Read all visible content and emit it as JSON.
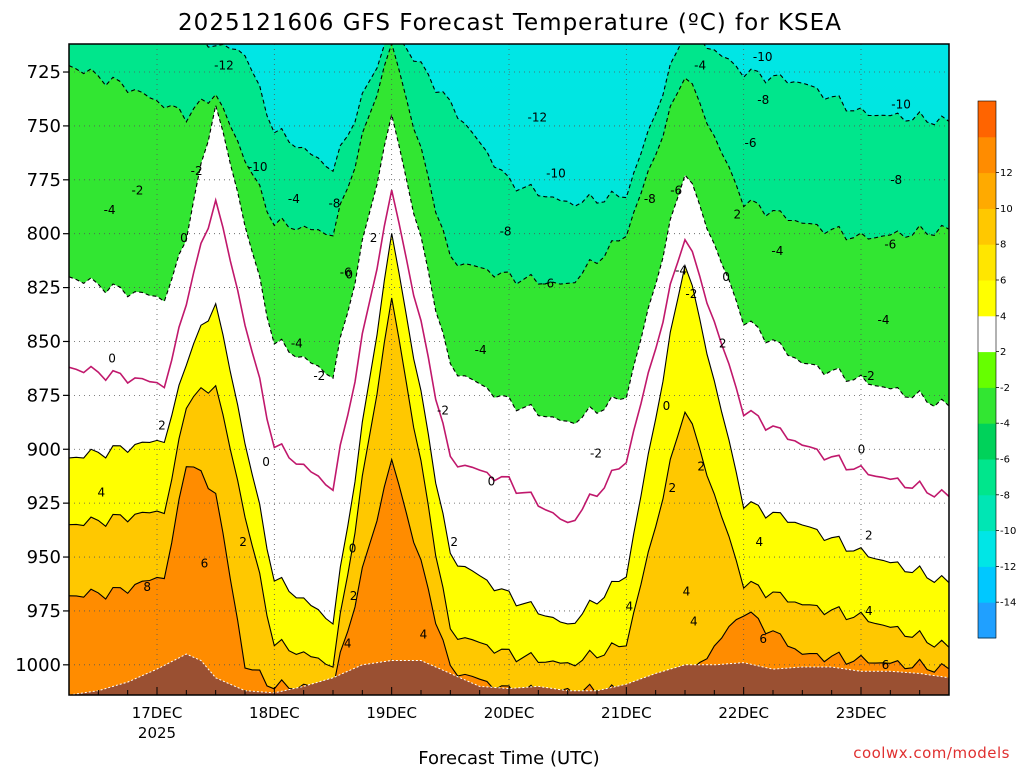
{
  "chart_data": {
    "type": "contour-crosssection",
    "title": "2025121606 GFS Forecast Temperature (ºC) for KSEA",
    "xlabel": "Forecast Time (UTC)",
    "credit": "coolwx.com/models",
    "pressure_ticks": [
      "725",
      "750",
      "775",
      "800",
      "825",
      "850",
      "875",
      "900",
      "925",
      "950",
      "975",
      "1000"
    ],
    "pressure_values": [
      725,
      750,
      775,
      800,
      825,
      850,
      875,
      900,
      925,
      950,
      975,
      1000
    ],
    "y_range_hPa": [
      712,
      1014
    ],
    "time_ticks": [
      "17DEC",
      "18DEC",
      "19DEC",
      "20DEC",
      "21DEC",
      "22DEC",
      "23DEC"
    ],
    "time_tick_hours": [
      18,
      42,
      66,
      90,
      114,
      138,
      162
    ],
    "year_label": "2025",
    "x_range_hours": [
      0,
      180
    ],
    "colorbar": {
      "levels": [
        -16,
        -14,
        -12,
        -10,
        -8,
        -6,
        -4,
        -2,
        2,
        4,
        6,
        8,
        10,
        12,
        14
      ],
      "labels": [
        "-14",
        "-12",
        "-10",
        "-8",
        "-6",
        "-4",
        "-2",
        "2",
        "4",
        "6",
        "8",
        "10",
        "12"
      ],
      "colors": [
        "#20a0ff",
        "#00c8ff",
        "#00e6e6",
        "#00e6b4",
        "#00e68c",
        "#00d25a",
        "#32e632",
        "#66ff00",
        "#ffffff",
        "#ffff00",
        "#ffe600",
        "#ffc800",
        "#ffaa00",
        "#ff8c00",
        "#ff6400"
      ]
    },
    "series": [
      {
        "name": "-10 isotherm (hPa)",
        "x": [
          0,
          18,
          36,
          42,
          54,
          66,
          78,
          90,
          102,
          114,
          126,
          138,
          150,
          162,
          180
        ],
        "values": [
          705,
          705,
          716,
          752,
          770,
          705,
          740,
          776,
          786,
          782,
          705,
          725,
          730,
          744,
          748
        ]
      },
      {
        "name": "-6 isotherm (hPa)",
        "x": [
          0,
          12,
          24,
          30,
          42,
          54,
          66,
          78,
          90,
          102,
          114,
          126,
          138,
          150,
          162,
          180
        ],
        "values": [
          722,
          732,
          745,
          735,
          795,
          800,
          712,
          812,
          820,
          824,
          800,
          725,
          785,
          795,
          802,
          798
        ]
      },
      {
        "name": "-2 isotherm (hPa)",
        "x": [
          0,
          10,
          20,
          24,
          30,
          42,
          54,
          66,
          78,
          90,
          102,
          114,
          126,
          138,
          150,
          162,
          180
        ],
        "values": [
          820,
          826,
          830,
          800,
          740,
          850,
          866,
          745,
          862,
          878,
          888,
          875,
          770,
          840,
          860,
          868,
          880
        ]
      },
      {
        "name": "0 isotherm (hPa)",
        "x": [
          0,
          10,
          20,
          24,
          30,
          42,
          54,
          66,
          78,
          90,
          102,
          114,
          126,
          138,
          150,
          162,
          180
        ],
        "values": [
          862,
          866,
          870,
          830,
          784,
          898,
          918,
          780,
          905,
          915,
          935,
          905,
          800,
          882,
          898,
          910,
          922
        ]
      },
      {
        "name": "2 isotherm (hPa)",
        "x": [
          0,
          10,
          20,
          24,
          30,
          42,
          54,
          66,
          78,
          90,
          102,
          114,
          126,
          138,
          150,
          162,
          180
        ],
        "values": [
          904,
          900,
          895,
          858,
          832,
          960,
          980,
          800,
          950,
          968,
          982,
          958,
          812,
          925,
          935,
          948,
          962
        ]
      },
      {
        "name": "4 isotherm (hPa)",
        "x": [
          0,
          10,
          20,
          24,
          30,
          42,
          54,
          66,
          78,
          90,
          102,
          114,
          126,
          138,
          150,
          162,
          180
        ],
        "values": [
          935,
          932,
          928,
          878,
          870,
          990,
          1000,
          830,
          985,
          995,
          1000,
          990,
          880,
          962,
          972,
          978,
          992
        ]
      },
      {
        "name": "6 isotherm (hPa)",
        "x": [
          0,
          10,
          20,
          24,
          30,
          36,
          42,
          54,
          66,
          78,
          90,
          102,
          114,
          126,
          138,
          150,
          162,
          180
        ],
        "values": [
          968,
          966,
          958,
          905,
          920,
          1000,
          1010,
          1010,
          905,
          1002,
          1012,
          1012,
          1012,
          1008,
          975,
          995,
          998,
          1002
        ]
      }
    ],
    "contour_labels": [
      {
        "text": "-12",
        "x": 31.7,
        "p": 722
      },
      {
        "text": "-10",
        "x": 38.6,
        "p": 769
      },
      {
        "text": "-8",
        "x": 54.3,
        "p": 786
      },
      {
        "text": "-6",
        "x": 56.6,
        "p": 818
      },
      {
        "text": "-4",
        "x": 46.0,
        "p": 784
      },
      {
        "text": "-2",
        "x": 26.1,
        "p": 771
      },
      {
        "text": "-2",
        "x": 14.0,
        "p": 780
      },
      {
        "text": "-4",
        "x": 8.3,
        "p": 789
      },
      {
        "text": "0",
        "x": 23.5,
        "p": 802
      },
      {
        "text": "0",
        "x": 8.8,
        "p": 858
      },
      {
        "text": "2",
        "x": 19.0,
        "p": 889
      },
      {
        "text": "4",
        "x": 6.6,
        "p": 920
      },
      {
        "text": "-4",
        "x": 46.6,
        "p": 851
      },
      {
        "text": "-2",
        "x": 51.2,
        "p": 866
      },
      {
        "text": "0",
        "x": 40.3,
        "p": 906
      },
      {
        "text": "2",
        "x": 35.6,
        "p": 943
      },
      {
        "text": "6",
        "x": 27.7,
        "p": 953
      },
      {
        "text": "8",
        "x": 16.0,
        "p": 964
      },
      {
        "text": "0",
        "x": 57.3,
        "p": 819
      },
      {
        "text": "2",
        "x": 62.3,
        "p": 802
      },
      {
        "text": "0",
        "x": 58.0,
        "p": 946
      },
      {
        "text": "2",
        "x": 58.2,
        "p": 968
      },
      {
        "text": "4",
        "x": 57.0,
        "p": 990
      },
      {
        "text": "4",
        "x": 72.5,
        "p": 986
      },
      {
        "text": "-12",
        "x": 95.8,
        "p": 746
      },
      {
        "text": "-10",
        "x": 99.6,
        "p": 772
      },
      {
        "text": "-8",
        "x": 89.3,
        "p": 799
      },
      {
        "text": "-6",
        "x": 98.0,
        "p": 823
      },
      {
        "text": "-4",
        "x": 84.2,
        "p": 854
      },
      {
        "text": "-2",
        "x": 76.5,
        "p": 882
      },
      {
        "text": "0",
        "x": 86.4,
        "p": 915
      },
      {
        "text": "2",
        "x": 78.8,
        "p": 943
      },
      {
        "text": "-2",
        "x": 107.8,
        "p": 902
      },
      {
        "text": "-8",
        "x": 118.8,
        "p": 784
      },
      {
        "text": "-6",
        "x": 124.2,
        "p": 780
      },
      {
        "text": "-4",
        "x": 125.2,
        "p": 817
      },
      {
        "text": "-2",
        "x": 127.3,
        "p": 828
      },
      {
        "text": "0",
        "x": 122.2,
        "p": 880
      },
      {
        "text": "2",
        "x": 123.4,
        "p": 918
      },
      {
        "text": "4",
        "x": 114.6,
        "p": 973
      },
      {
        "text": "4",
        "x": 126.3,
        "p": 966
      },
      {
        "text": "4",
        "x": 127.8,
        "p": 980
      },
      {
        "text": "2",
        "x": 129.3,
        "p": 908
      },
      {
        "text": "-4",
        "x": 129.1,
        "p": 722
      },
      {
        "text": "-8",
        "x": 142.0,
        "p": 738
      },
      {
        "text": "-6",
        "x": 139.4,
        "p": 758
      },
      {
        "text": "2",
        "x": 136.7,
        "p": 791
      },
      {
        "text": "0",
        "x": 134.4,
        "p": 820
      },
      {
        "text": "2",
        "x": 133.7,
        "p": 851
      },
      {
        "text": "-4",
        "x": 144.9,
        "p": 808
      },
      {
        "text": "4",
        "x": 141.2,
        "p": 943
      },
      {
        "text": "6",
        "x": 142.0,
        "p": 988
      },
      {
        "text": "-10",
        "x": 141.9,
        "p": 718
      },
      {
        "text": "-10",
        "x": 170.2,
        "p": 740
      },
      {
        "text": "-8",
        "x": 169.2,
        "p": 775
      },
      {
        "text": "-6",
        "x": 168.0,
        "p": 805
      },
      {
        "text": "-4",
        "x": 166.6,
        "p": 840
      },
      {
        "text": "-2",
        "x": 163.6,
        "p": 866
      },
      {
        "text": "0",
        "x": 162.1,
        "p": 900
      },
      {
        "text": "2",
        "x": 163.6,
        "p": 940
      },
      {
        "text": "4",
        "x": 163.6,
        "p": 975
      },
      {
        "text": "6",
        "x": 167.0,
        "p": 1000
      }
    ],
    "terrain_surface_hPa": {
      "x": [
        0,
        6,
        12,
        18,
        24,
        27,
        30,
        36,
        42,
        48,
        54,
        60,
        66,
        72,
        78,
        84,
        90,
        96,
        102,
        108,
        114,
        120,
        126,
        132,
        138,
        144,
        150,
        156,
        162,
        168,
        174,
        180
      ],
      "values": [
        1014,
        1012,
        1008,
        1002,
        995,
        998,
        1006,
        1012,
        1013,
        1010,
        1006,
        1000,
        998,
        998,
        1004,
        1010,
        1011,
        1010,
        1012,
        1012,
        1009,
        1004,
        1000,
        1000,
        999,
        1002,
        1001,
        1001,
        1003,
        1003,
        1004,
        1006
      ]
    }
  }
}
